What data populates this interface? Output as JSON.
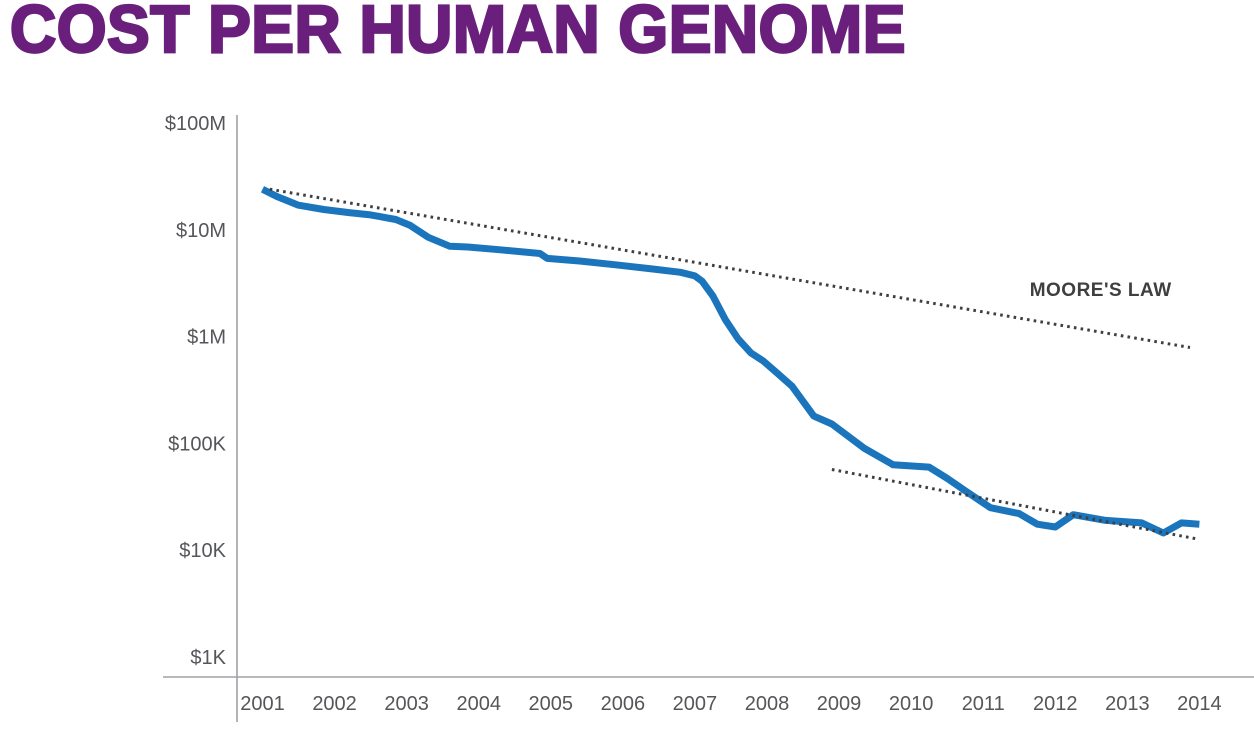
{
  "title": "COST PER HUMAN GENOME",
  "colors": {
    "title": "#6A1F7C",
    "cost_line": "#1B75BC",
    "dotted_line": "#3E3F41",
    "tick_text": "#55565A",
    "axis_line": "#A0A2A5"
  },
  "chart_data": {
    "type": "line",
    "title": "COST PER HUMAN GENOME",
    "xlabel": "",
    "ylabel": "",
    "y_scale": "log10",
    "ylim": [
      1000,
      100000000
    ],
    "xlim": [
      2001,
      2014
    ],
    "grid": false,
    "legend_position": "none",
    "y_ticks": [
      {
        "label": "$100M",
        "value": 100000000
      },
      {
        "label": "$10M",
        "value": 10000000
      },
      {
        "label": "$1M",
        "value": 1000000
      },
      {
        "label": "$100K",
        "value": 100000
      },
      {
        "label": "$10K",
        "value": 10000
      },
      {
        "label": "$1K",
        "value": 1000
      }
    ],
    "x_ticks": [
      "2001",
      "2002",
      "2003",
      "2004",
      "2005",
      "2006",
      "2007",
      "2008",
      "2009",
      "2010",
      "2011",
      "2012",
      "2013",
      "2014"
    ],
    "series": [
      {
        "name": "cost-per-genome",
        "style": "solid",
        "color": "#1B75BC",
        "points": [
          [
            2001.0,
            24000000
          ],
          [
            2001.2,
            20500000
          ],
          [
            2001.5,
            17000000
          ],
          [
            2001.85,
            15500000
          ],
          [
            2002.2,
            14500000
          ],
          [
            2002.5,
            13800000
          ],
          [
            2002.85,
            12500000
          ],
          [
            2003.05,
            11000000
          ],
          [
            2003.3,
            8500000
          ],
          [
            2003.6,
            7000000
          ],
          [
            2003.85,
            6900000
          ],
          [
            2004.3,
            6500000
          ],
          [
            2004.85,
            6000000
          ],
          [
            2004.95,
            5400000
          ],
          [
            2005.4,
            5100000
          ],
          [
            2005.9,
            4700000
          ],
          [
            2006.4,
            4300000
          ],
          [
            2006.8,
            4000000
          ],
          [
            2007.0,
            3700000
          ],
          [
            2007.1,
            3300000
          ],
          [
            2007.25,
            2400000
          ],
          [
            2007.42,
            1450000
          ],
          [
            2007.6,
            950000
          ],
          [
            2007.78,
            700000
          ],
          [
            2007.95,
            590000
          ],
          [
            2008.15,
            450000
          ],
          [
            2008.35,
            342000
          ],
          [
            2008.65,
            180000
          ],
          [
            2008.9,
            152000
          ],
          [
            2009.35,
            90000
          ],
          [
            2009.75,
            63000
          ],
          [
            2010.25,
            60000
          ],
          [
            2010.5,
            47000
          ],
          [
            2010.75,
            36000
          ],
          [
            2011.1,
            25000
          ],
          [
            2011.5,
            22000
          ],
          [
            2011.75,
            17500
          ],
          [
            2012.0,
            16500
          ],
          [
            2012.25,
            21500
          ],
          [
            2012.7,
            19000
          ],
          [
            2013.2,
            18000
          ],
          [
            2013.5,
            14500
          ],
          [
            2013.75,
            18000
          ],
          [
            2014.0,
            17500
          ]
        ]
      },
      {
        "name": "moores-law",
        "style": "dotted",
        "color": "#3E3F41",
        "points": [
          [
            2001.1,
            24000000
          ],
          [
            2013.87,
            790000
          ]
        ]
      },
      {
        "name": "moores-law-extension",
        "style": "dotted",
        "color": "#3E3F41",
        "points": [
          [
            2008.9,
            57000
          ],
          [
            2013.95,
            12800
          ]
        ]
      }
    ],
    "annotations": [
      {
        "text": "MOORE'S LAW",
        "x": 2012.63,
        "y": 2400000
      }
    ]
  }
}
